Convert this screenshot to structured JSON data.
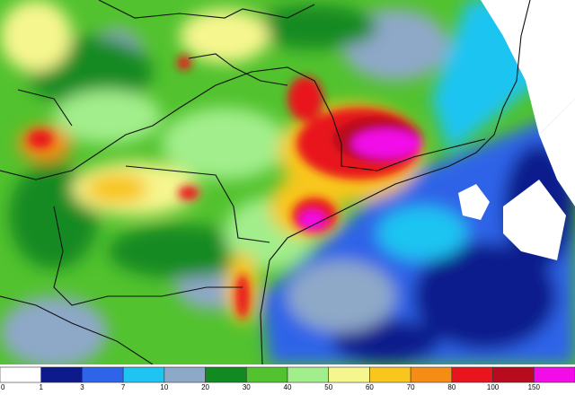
{
  "legend": {
    "levels": [
      0,
      1,
      3,
      7,
      10,
      20,
      30,
      40,
      50,
      60,
      70,
      80,
      100,
      150
    ],
    "colors": [
      "#ffffff",
      "#0c1a8c",
      "#2e64e8",
      "#1ec4f2",
      "#8ea8c8",
      "#128a22",
      "#52c22e",
      "#a2ee8c",
      "#f6f68e",
      "#f8c61c",
      "#f58c16",
      "#e8141e",
      "#b80c1e",
      "#f20ce8"
    ]
  }
}
